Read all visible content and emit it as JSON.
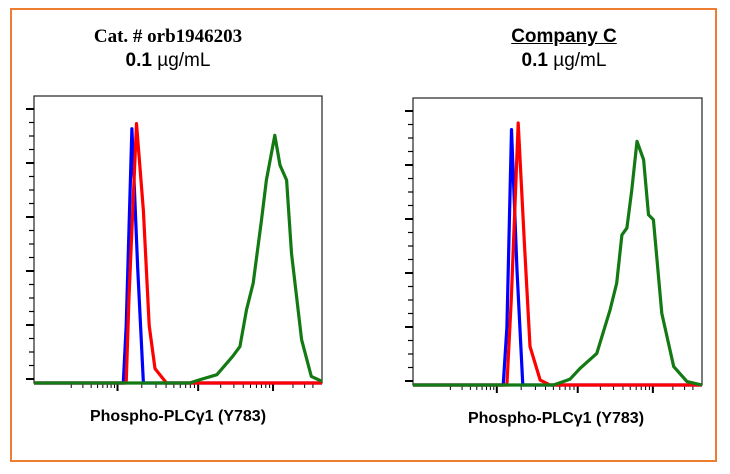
{
  "colors": {
    "border": "#ED7D31",
    "blue": "#0000FF",
    "red": "#FF0000",
    "green": "#137A13"
  },
  "chart_data": [
    {
      "type": "line",
      "title": "Cat. # orb1946203",
      "subtitle_value": "0.1",
      "subtitle_unit": "µg/mL",
      "xlabel": "Phospho-PLCγ1 (Y783)",
      "ylabel": "",
      "xscale": "log",
      "xlim": [
        0,
        100
      ],
      "ylim": [
        0,
        100
      ],
      "series": [
        {
          "color": "#0000FF",
          "x": [
            0,
            31,
            32,
            34,
            36,
            38,
            100
          ],
          "y": [
            0,
            0,
            20,
            88.6,
            40,
            0,
            0
          ]
        },
        {
          "color": "#FF0000",
          "x": [
            0,
            32,
            33,
            35.6,
            38,
            40,
            42,
            46,
            100
          ],
          "y": [
            0,
            0,
            30,
            90.4,
            60,
            20,
            5,
            0,
            0
          ]
        },
        {
          "color": "#137A13",
          "x": [
            0,
            54,
            57.7,
            63.5,
            69,
            71.5,
            73.8,
            76.1,
            79,
            80.7,
            83.6,
            85.4,
            87.7,
            89.4,
            92.9,
            96.3,
            100
          ],
          "y": [
            0,
            0,
            1.2,
            2.9,
            9.3,
            12.7,
            25.5,
            34.8,
            56.8,
            70.7,
            86.3,
            75.9,
            70.7,
            45.2,
            15.1,
            2.3,
            0.6
          ]
        }
      ]
    },
    {
      "type": "line",
      "title": "Company C",
      "subtitle_value": "0.1",
      "subtitle_unit": "µg/mL",
      "xlabel": "Phospho-PLCγ1 (Y783)",
      "ylabel": "",
      "xscale": "log",
      "xlim": [
        0,
        100
      ],
      "ylim": [
        0,
        100
      ],
      "series": [
        {
          "color": "#0000FF",
          "x": [
            0,
            31.2,
            32.5,
            34.1,
            36,
            38,
            100
          ],
          "y": [
            0,
            0,
            20,
            89,
            40,
            0,
            0
          ]
        },
        {
          "color": "#FF0000",
          "x": [
            0,
            32.5,
            34,
            36.4,
            38.5,
            40.5,
            44,
            47.4,
            100
          ],
          "y": [
            0,
            0,
            30,
            91.3,
            50,
            13.4,
            1.7,
            0,
            0
          ]
        },
        {
          "color": "#137A13",
          "x": [
            0,
            48.6,
            54.3,
            57.8,
            63.6,
            68.2,
            70.5,
            72.3,
            74,
            75.7,
            77.5,
            79.8,
            81.5,
            83.2,
            86.1,
            90.2,
            94.8,
            100
          ],
          "y": [
            0,
            0,
            2,
            5.8,
            11,
            26.2,
            35.5,
            52.3,
            54.7,
            68,
            84.9,
            78.5,
            59.3,
            57.6,
            25,
            6.4,
            1.2,
            0
          ]
        }
      ]
    }
  ]
}
